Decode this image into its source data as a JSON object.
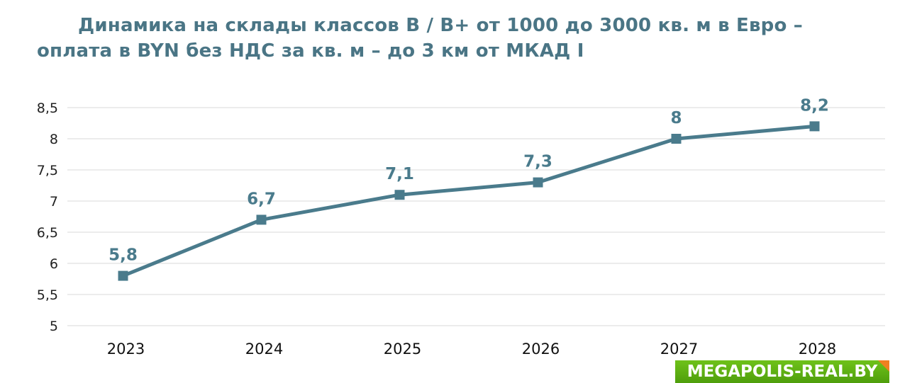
{
  "chart_data": {
    "type": "line",
    "title_line1": "Динамика на склады классов B / B+ от 1000 до 3000 кв. м в Евро –",
    "title_line2": "оплата в BYN без НДС за кв. м – до 3 км от МКАД I",
    "categories": [
      "2023",
      "2024",
      "2025",
      "2026",
      "2027",
      "2028"
    ],
    "values": [
      5.8,
      6.7,
      7.1,
      7.3,
      8.0,
      8.2
    ],
    "data_labels": [
      "5,8",
      "6,7",
      "7,1",
      "7,3",
      "8",
      "8,2"
    ],
    "ylim": [
      5,
      8.5
    ],
    "y_ticks": [
      "5",
      "5,5",
      "6",
      "6,5",
      "7",
      "7,5",
      "8",
      "8,5"
    ],
    "xlabel": "",
    "ylabel": "",
    "grid": true,
    "legend": "none",
    "colors": {
      "line": "#4a7b8c",
      "title": "#4a7585",
      "grid": "#e6e6e6"
    }
  },
  "watermark": "MEGAPOLIS-REAL.BY"
}
